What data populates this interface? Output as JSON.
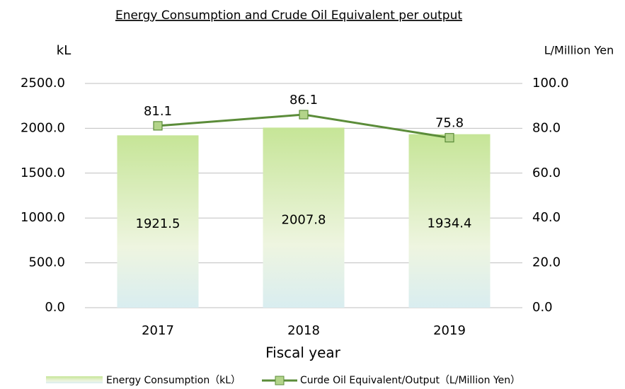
{
  "chart_data": {
    "type": "bar_line",
    "title": "Energy Consumption and Crude Oil Equivalent per output",
    "y_label": "kL",
    "y2_label": "L/Million Yen",
    "x_label": "Fiscal year",
    "categories": [
      "2017",
      "2018",
      "2019"
    ],
    "series": [
      {
        "name": "Energy Consumption（kL）",
        "type": "bar",
        "color": "#c6e597",
        "values": [
          1921.5,
          2007.8,
          1934.4
        ]
      },
      {
        "name": "Curde Oil Equivalent/Output（L/Million Yen）",
        "type": "line",
        "axis": "y2",
        "color": "#5b8c39",
        "marker_color": "#b3d48a",
        "values": [
          81.1,
          86.1,
          75.8
        ]
      }
    ],
    "ylim": [
      0,
      2500
    ],
    "yticks": [
      {
        "value": 0,
        "label": "0.0"
      },
      {
        "value": 500,
        "label": "500.0"
      },
      {
        "value": 1000,
        "label": "1000.0"
      },
      {
        "value": 1500,
        "label": "1500.0"
      },
      {
        "value": 2000,
        "label": "2000.0"
      },
      {
        "value": 2500,
        "label": "2500.0"
      }
    ],
    "y2lim": [
      0,
      100
    ],
    "y2ticks": [
      {
        "value": 0,
        "label": "0.0"
      },
      {
        "value": 20,
        "label": "20.0"
      },
      {
        "value": 40,
        "label": "40.0"
      },
      {
        "value": 60,
        "label": "60.0"
      },
      {
        "value": 80,
        "label": "80.0"
      },
      {
        "value": 100,
        "label": "100.0"
      }
    ],
    "grid": true,
    "legend": "bottom"
  }
}
